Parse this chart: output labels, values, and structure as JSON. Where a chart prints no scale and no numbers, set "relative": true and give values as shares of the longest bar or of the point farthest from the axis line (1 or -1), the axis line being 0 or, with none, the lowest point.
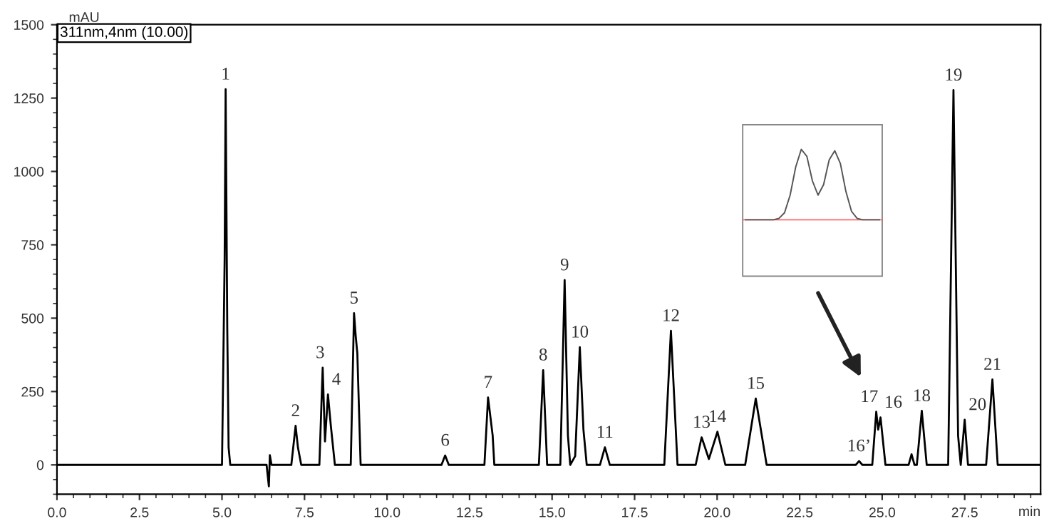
{
  "chart_data": [
    {
      "type": "line",
      "xlabel": "min",
      "ylabel": "mAU",
      "annotations": [
        "311nm,4nm (10.00)",
        {
          "text": "1",
          "x": 5.11,
          "y": 1280
        },
        {
          "text": "2",
          "x": 7.23,
          "y": 133
        },
        {
          "text": "3",
          "x": 8.05,
          "y": 331
        },
        {
          "text": "4",
          "x": 8.21,
          "y": 240
        },
        {
          "text": "5",
          "x": 9.0,
          "y": 517
        },
        {
          "text": "6",
          "x": 11.76,
          "y": 32
        },
        {
          "text": "7",
          "x": 13.06,
          "y": 230
        },
        {
          "text": "8",
          "x": 14.73,
          "y": 323
        },
        {
          "text": "9",
          "x": 15.38,
          "y": 630
        },
        {
          "text": "10",
          "x": 15.84,
          "y": 401
        },
        {
          "text": "11",
          "x": 16.6,
          "y": 60
        },
        {
          "text": "12",
          "x": 18.6,
          "y": 457
        },
        {
          "text": "13",
          "x": 19.53,
          "y": 94
        },
        {
          "text": "14",
          "x": 20.01,
          "y": 113
        },
        {
          "text": "15",
          "x": 21.17,
          "y": 226
        },
        {
          "text": "16’",
          "x": 24.3,
          "y": 13
        },
        {
          "text": "17",
          "x": 24.82,
          "y": 181
        },
        {
          "text": "16",
          "x": 24.95,
          "y": 162
        },
        {
          "text": "18",
          "x": 26.2,
          "y": 184
        },
        {
          "text": "19",
          "x": 27.16,
          "y": 1277
        },
        {
          "text": "20",
          "x": 27.5,
          "y": 154
        },
        {
          "text": "21",
          "x": 28.34,
          "y": 291
        }
      ],
      "x": [
        0,
        5.0,
        5.08,
        5.11,
        5.16,
        5.2,
        5.25,
        6.35,
        6.42,
        6.45,
        6.5,
        7.1,
        7.23,
        7.3,
        7.4,
        7.95,
        8.05,
        8.12,
        8.21,
        8.3,
        8.42,
        8.9,
        9.0,
        9.05,
        9.1,
        9.2,
        11.65,
        11.76,
        11.87,
        12.95,
        13.06,
        13.2,
        13.25,
        14.6,
        14.73,
        14.85,
        15.25,
        15.38,
        15.48,
        15.55,
        15.7,
        15.84,
        15.95,
        16.05,
        16.45,
        16.6,
        16.75,
        18.4,
        18.6,
        18.8,
        19.35,
        19.53,
        19.75,
        20.01,
        20.25,
        20.85,
        21.17,
        21.5,
        24.2,
        24.3,
        24.4,
        24.7,
        24.82,
        24.88,
        24.95,
        25.1,
        25.8,
        25.89,
        25.98,
        26.05,
        26.2,
        26.35,
        27.0,
        27.16,
        27.3,
        27.38,
        27.5,
        27.6,
        28.15,
        28.34,
        28.5,
        29.8
      ],
      "series": [
        {
          "color": "#000000",
          "values": [
            0,
            0,
            700,
            1280,
            460,
            60,
            0,
            0,
            -73,
            33,
            0,
            0,
            133,
            60,
            0,
            0,
            331,
            80,
            240,
            130,
            0,
            0,
            517,
            440,
            380,
            0,
            0,
            32,
            0,
            0,
            230,
            100,
            0,
            0,
            323,
            0,
            0,
            630,
            100,
            0,
            30,
            401,
            120,
            0,
            0,
            60,
            0,
            0,
            457,
            0,
            0,
            94,
            20,
            113,
            0,
            0,
            226,
            0,
            0,
            13,
            0,
            0,
            181,
            120,
            162,
            0,
            0,
            36,
            0,
            0,
            184,
            0,
            0,
            1277,
            100,
            0,
            154,
            0,
            0,
            291,
            0,
            0
          ]
        }
      ],
      "xlim": [
        0,
        29.8
      ],
      "ylim": [
        -100,
        1500
      ],
      "xticks": [
        {
          "value": 0,
          "label": "0.0"
        },
        2.5,
        {
          "value": 5,
          "label": "5.0"
        },
        7.5,
        {
          "value": 10,
          "label": "10.0"
        },
        12.5,
        {
          "value": 15,
          "label": "15.0"
        },
        17.5,
        {
          "value": 20,
          "label": "20.0"
        },
        22.5,
        {
          "value": 25,
          "label": "25.0"
        },
        27.5
      ],
      "yticks": [
        0,
        250,
        500,
        750,
        1000,
        1250,
        1500
      ],
      "grid": false,
      "legend": false,
      "line_style": "solid",
      "marker": "none"
    },
    {
      "type": "line",
      "relative": true,
      "tick_labels": false,
      "categories": [
        null,
        null,
        null,
        null,
        null,
        null,
        null,
        null,
        null,
        null,
        null,
        null,
        null,
        null,
        null,
        null,
        null,
        null,
        null,
        null,
        null,
        null,
        null,
        null,
        null
      ],
      "series": [
        {
          "color": "#555555",
          "values": [
            0,
            0,
            0,
            0,
            0,
            0,
            0.02,
            0.1,
            0.35,
            0.75,
            1.0,
            0.9,
            0.55,
            0.35,
            0.5,
            0.85,
            0.98,
            0.8,
            0.4,
            0.12,
            0.02,
            0,
            0,
            0,
            0
          ]
        }
      ],
      "ref_lines": [
        {
          "axis": "y",
          "value": 0,
          "color": "#ff6666"
        }
      ],
      "grid": false,
      "legend": false,
      "line_style": "solid",
      "marker": "none"
    }
  ]
}
